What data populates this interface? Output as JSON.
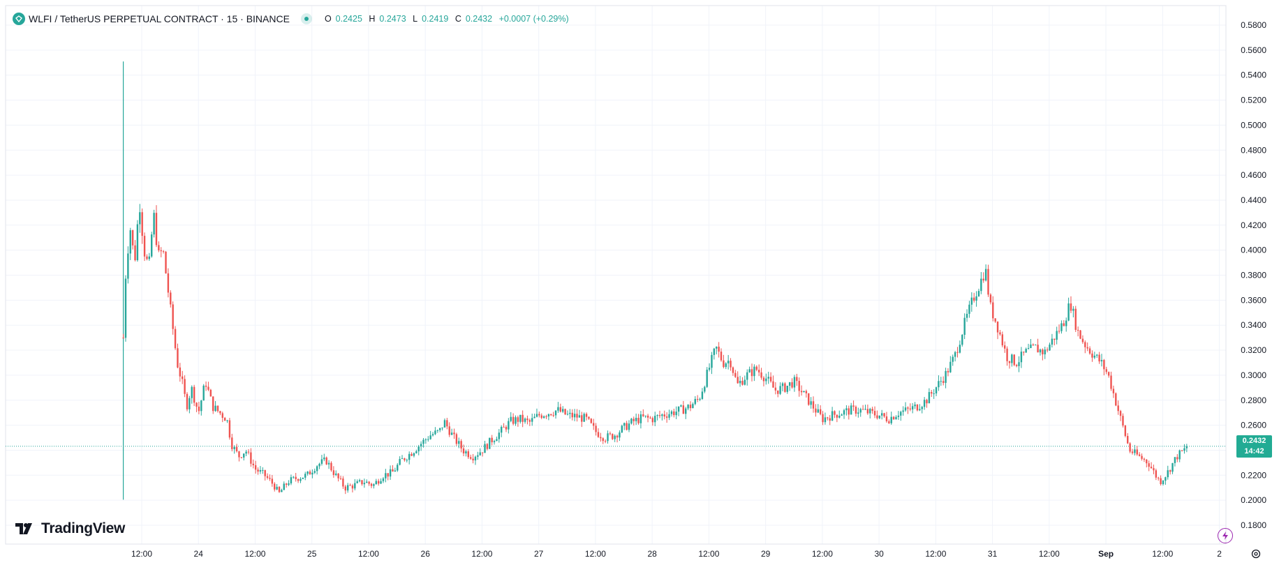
{
  "header": {
    "title": "WLFI / TetherUS PERPETUAL CONTRACT · 15 · BINANCE",
    "open_label": "O",
    "open": "0.2425",
    "high_label": "H",
    "high": "0.2473",
    "low_label": "L",
    "low": "0.2419",
    "close_label": "C",
    "close": "0.2432",
    "change": "+0.0007 (+0.29%)"
  },
  "price_label": {
    "price": "0.2432",
    "countdown": "14:42"
  },
  "logo": {
    "text": "TradingView"
  },
  "colors": {
    "up": "#26a69a",
    "down": "#ef5350",
    "grid": "#f0f3fa",
    "accent": "#22ab94",
    "bolt": "#9c27b0"
  },
  "icons": [
    "wlfi-symbol-icon",
    "market-status-icon",
    "tradingview-logo-icon",
    "lightning-icon",
    "settings-icon"
  ],
  "chart_data": {
    "type": "candlestick",
    "symbol": "WLFI/USDT",
    "interval": "15",
    "ylim": [
      0.18,
      0.58
    ],
    "y_ticks": [
      0.18,
      0.2,
      0.22,
      0.24,
      0.26,
      0.28,
      0.3,
      0.32,
      0.34,
      0.36,
      0.38,
      0.4,
      0.42,
      0.44,
      0.46,
      0.48,
      0.5,
      0.52,
      0.54,
      0.56,
      0.58
    ],
    "y_tick_labels": [
      "0.1800",
      "0.2000",
      "0.2200",
      "0.2400",
      "0.2600",
      "0.2800",
      "0.3000",
      "0.3200",
      "0.3400",
      "0.3600",
      "0.3800",
      "0.4000",
      "0.4200",
      "0.4400",
      "0.4600",
      "0.4800",
      "0.5000",
      "0.5200",
      "0.5400",
      "0.5600",
      "0.5800"
    ],
    "x_ticks": [
      {
        "label": "12:00",
        "hour": 12
      },
      {
        "label": "24",
        "hour": 24
      },
      {
        "label": "12:00",
        "hour": 36
      },
      {
        "label": "25",
        "hour": 48
      },
      {
        "label": "12:00",
        "hour": 60
      },
      {
        "label": "26",
        "hour": 72
      },
      {
        "label": "12:00",
        "hour": 84
      },
      {
        "label": "27",
        "hour": 96
      },
      {
        "label": "12:00",
        "hour": 108
      },
      {
        "label": "28",
        "hour": 120
      },
      {
        "label": "12:00",
        "hour": 132
      },
      {
        "label": "29",
        "hour": 144
      },
      {
        "label": "12:00",
        "hour": 156
      },
      {
        "label": "30",
        "hour": 168
      },
      {
        "label": "12:00",
        "hour": 180
      },
      {
        "label": "31",
        "hour": 192
      },
      {
        "label": "12:00",
        "hour": 204
      },
      {
        "label": "Sep",
        "hour": 216
      },
      {
        "label": "12:00",
        "hour": 228
      },
      {
        "label": "2",
        "hour": 240
      }
    ],
    "x_range_hours": [
      0,
      250.8
    ],
    "last_price": 0.2432,
    "listing_spike": {
      "hour": 8.1,
      "high": 0.5509,
      "low": 0.2004
    },
    "price_path": [
      [
        8.1,
        0.33
      ],
      [
        8.6,
        0.38
      ],
      [
        9.5,
        0.42
      ],
      [
        10.5,
        0.39
      ],
      [
        11.5,
        0.44
      ],
      [
        12.5,
        0.4
      ],
      [
        13.5,
        0.385
      ],
      [
        14.5,
        0.43
      ],
      [
        15.5,
        0.395
      ],
      [
        16.5,
        0.4
      ],
      [
        17.5,
        0.37
      ],
      [
        18.5,
        0.34
      ],
      [
        19.5,
        0.31
      ],
      [
        20.5,
        0.295
      ],
      [
        21.5,
        0.275
      ],
      [
        22.5,
        0.29
      ],
      [
        24,
        0.27
      ],
      [
        25.5,
        0.295
      ],
      [
        27,
        0.275
      ],
      [
        28.5,
        0.27
      ],
      [
        30,
        0.265
      ],
      [
        31,
        0.245
      ],
      [
        32.5,
        0.235
      ],
      [
        34,
        0.24
      ],
      [
        36,
        0.225
      ],
      [
        38,
        0.22
      ],
      [
        40,
        0.212
      ],
      [
        41,
        0.205
      ],
      [
        43,
        0.215
      ],
      [
        45,
        0.218
      ],
      [
        47,
        0.22
      ],
      [
        49,
        0.228
      ],
      [
        51,
        0.232
      ],
      [
        53,
        0.22
      ],
      [
        55,
        0.21
      ],
      [
        57,
        0.212
      ],
      [
        59,
        0.215
      ],
      [
        61,
        0.212
      ],
      [
        63,
        0.22
      ],
      [
        65,
        0.222
      ],
      [
        67,
        0.232
      ],
      [
        69,
        0.238
      ],
      [
        71,
        0.245
      ],
      [
        73,
        0.252
      ],
      [
        75,
        0.255
      ],
      [
        76,
        0.263
      ],
      [
        78,
        0.25
      ],
      [
        80,
        0.24
      ],
      [
        82,
        0.235
      ],
      [
        84,
        0.24
      ],
      [
        86,
        0.248
      ],
      [
        88,
        0.255
      ],
      [
        90,
        0.263
      ],
      [
        92,
        0.265
      ],
      [
        94,
        0.262
      ],
      [
        96,
        0.268
      ],
      [
        98,
        0.27
      ],
      [
        100,
        0.272
      ],
      [
        102,
        0.268
      ],
      [
        104,
        0.267
      ],
      [
        106,
        0.265
      ],
      [
        108,
        0.255
      ],
      [
        110,
        0.25
      ],
      [
        112,
        0.252
      ],
      [
        114,
        0.258
      ],
      [
        116,
        0.263
      ],
      [
        118,
        0.266
      ],
      [
        120,
        0.265
      ],
      [
        122,
        0.268
      ],
      [
        124,
        0.27
      ],
      [
        126,
        0.272
      ],
      [
        128,
        0.275
      ],
      [
        130,
        0.282
      ],
      [
        132,
        0.305
      ],
      [
        133.5,
        0.322
      ],
      [
        135,
        0.31
      ],
      [
        136.5,
        0.312
      ],
      [
        138,
        0.292
      ],
      [
        140,
        0.3
      ],
      [
        142,
        0.305
      ],
      [
        144,
        0.298
      ],
      [
        146,
        0.288
      ],
      [
        148,
        0.29
      ],
      [
        150,
        0.295
      ],
      [
        152,
        0.285
      ],
      [
        154,
        0.275
      ],
      [
        156,
        0.265
      ],
      [
        158,
        0.268
      ],
      [
        160,
        0.27
      ],
      [
        162,
        0.272
      ],
      [
        164,
        0.272
      ],
      [
        166,
        0.27
      ],
      [
        168,
        0.268
      ],
      [
        170,
        0.265
      ],
      [
        172,
        0.27
      ],
      [
        174,
        0.272
      ],
      [
        176,
        0.275
      ],
      [
        178,
        0.28
      ],
      [
        180,
        0.29
      ],
      [
        182,
        0.3
      ],
      [
        184,
        0.315
      ],
      [
        186,
        0.34
      ],
      [
        188,
        0.362
      ],
      [
        189.5,
        0.375
      ],
      [
        190.5,
        0.385
      ],
      [
        191.5,
        0.355
      ],
      [
        193,
        0.34
      ],
      [
        195,
        0.315
      ],
      [
        197,
        0.31
      ],
      [
        199,
        0.318
      ],
      [
        201,
        0.322
      ],
      [
        203,
        0.318
      ],
      [
        205,
        0.33
      ],
      [
        207,
        0.342
      ],
      [
        208.5,
        0.358
      ],
      [
        210,
        0.335
      ],
      [
        211.5,
        0.325
      ],
      [
        213,
        0.318
      ],
      [
        215,
        0.31
      ],
      [
        216.5,
        0.3
      ],
      [
        218,
        0.28
      ],
      [
        219.5,
        0.26
      ],
      [
        221,
        0.24
      ],
      [
        223,
        0.235
      ],
      [
        225,
        0.23
      ],
      [
        226.5,
        0.22
      ],
      [
        227.5,
        0.215
      ],
      [
        229,
        0.222
      ],
      [
        231,
        0.235
      ],
      [
        233.5,
        0.2432
      ]
    ],
    "notable_points": [
      {
        "label": "peak",
        "hour": 11.5,
        "price": 0.4413
      },
      {
        "label": "low",
        "hour": 41,
        "price": 0.2003
      },
      {
        "label": "local-high",
        "hour": 190.5,
        "price": 0.3948
      },
      {
        "label": "recent-low",
        "hour": 227.5,
        "price": 0.2069
      }
    ]
  }
}
